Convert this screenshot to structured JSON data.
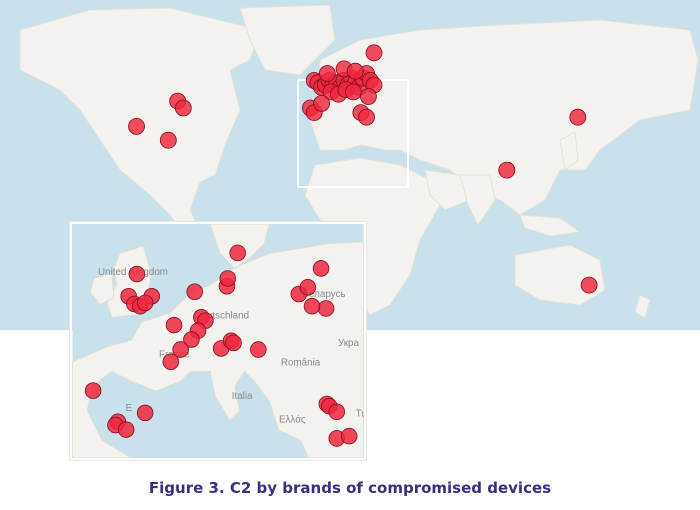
{
  "caption": "Figure 3. C2 by brands of compromised devices",
  "colors": {
    "water": "#c9e1ea",
    "land": "#f3f2ee",
    "land_edge": "#e3e1da",
    "marker_fill": "#f0273d",
    "marker_stroke": "#7a1020",
    "highlight_box": "#ffffff",
    "caption": "#3a2f7f"
  },
  "world_markers": [
    {
      "lon": -75,
      "lat": 43
    },
    {
      "lon": -72,
      "lat": 40
    },
    {
      "lon": -97,
      "lat": 32
    },
    {
      "lon": -80,
      "lat": 26
    },
    {
      "lon": 30,
      "lat": 64
    },
    {
      "lon": 139,
      "lat": 36
    },
    {
      "lon": 101,
      "lat": 13
    },
    {
      "lon": 145,
      "lat": -37
    },
    {
      "lon": -2,
      "lat": 52
    },
    {
      "lon": 0,
      "lat": 51
    },
    {
      "lon": 2,
      "lat": 49
    },
    {
      "lon": 4,
      "lat": 50
    },
    {
      "lon": 6,
      "lat": 52
    },
    {
      "lon": 8,
      "lat": 50
    },
    {
      "lon": 10,
      "lat": 51
    },
    {
      "lon": 12,
      "lat": 49
    },
    {
      "lon": 14,
      "lat": 52
    },
    {
      "lon": 16,
      "lat": 50
    },
    {
      "lon": 18,
      "lat": 53
    },
    {
      "lon": 20,
      "lat": 51
    },
    {
      "lon": 22,
      "lat": 49
    },
    {
      "lon": 24,
      "lat": 53
    },
    {
      "lon": 26,
      "lat": 55
    },
    {
      "lon": 28,
      "lat": 52
    },
    {
      "lon": 30,
      "lat": 50
    },
    {
      "lon": 7,
      "lat": 47
    },
    {
      "lon": 11,
      "lat": 46
    },
    {
      "lon": 15,
      "lat": 48
    },
    {
      "lon": 19,
      "lat": 47
    },
    {
      "lon": -4,
      "lat": 40
    },
    {
      "lon": -2,
      "lat": 38
    },
    {
      "lon": 2,
      "lat": 42
    },
    {
      "lon": 23,
      "lat": 38
    },
    {
      "lon": 26,
      "lat": 36
    },
    {
      "lon": 14,
      "lat": 57
    },
    {
      "lon": 20,
      "lat": 56
    },
    {
      "lon": 5,
      "lat": 55
    },
    {
      "lon": 27,
      "lat": 45
    }
  ],
  "inset_labels": [
    {
      "text": "United Kingdom",
      "key": "uk"
    },
    {
      "text": "Deutschland",
      "key": "de"
    },
    {
      "text": "France",
      "key": "fr"
    },
    {
      "text": "Беларусь",
      "key": "by"
    },
    {
      "text": "Укра",
      "key": "ua"
    },
    {
      "text": "România",
      "key": "ro"
    },
    {
      "text": "Italia",
      "key": "it"
    },
    {
      "text": "Ελλάς",
      "key": "gr"
    },
    {
      "text": "Tu",
      "key": "tr"
    },
    {
      "text": "E",
      "key": "es"
    }
  ],
  "inset_markers": [
    {
      "lon": -2.2,
      "lat": 53.5
    },
    {
      "lon": -0.4,
      "lat": 51.5
    },
    {
      "lon": -3.2,
      "lat": 51.5
    },
    {
      "lon": -2.5,
      "lat": 50.8
    },
    {
      "lon": -1.8,
      "lat": 50.6
    },
    {
      "lon": -1.2,
      "lat": 50.9
    },
    {
      "lon": 2.3,
      "lat": 48.9
    },
    {
      "lon": 4.8,
      "lat": 51.9
    },
    {
      "lon": 8.7,
      "lat": 52.4
    },
    {
      "lon": 8.8,
      "lat": 53.1
    },
    {
      "lon": 10.0,
      "lat": 55.4
    },
    {
      "lon": 5.6,
      "lat": 49.6
    },
    {
      "lon": 6.1,
      "lat": 49.3
    },
    {
      "lon": 5.2,
      "lat": 48.4
    },
    {
      "lon": 4.4,
      "lat": 47.6
    },
    {
      "lon": 3.1,
      "lat": 46.7
    },
    {
      "lon": 8.0,
      "lat": 46.8
    },
    {
      "lon": 9.2,
      "lat": 47.5
    },
    {
      "lon": 9.5,
      "lat": 47.3
    },
    {
      "lon": 12.5,
      "lat": 46.7
    },
    {
      "lon": 1.9,
      "lat": 45.6
    },
    {
      "lon": 17.4,
      "lat": 51.7
    },
    {
      "lon": 18.5,
      "lat": 52.3
    },
    {
      "lon": 20.1,
      "lat": 54.0
    },
    {
      "lon": 20.7,
      "lat": 50.4
    },
    {
      "lon": 19.0,
      "lat": 50.6
    },
    {
      "lon": -7.5,
      "lat": 43.0
    },
    {
      "lon": -4.5,
      "lat": 40.2
    },
    {
      "lon": -4.8,
      "lat": 39.9
    },
    {
      "lon": -1.2,
      "lat": 41.0
    },
    {
      "lon": -3.5,
      "lat": 39.5
    },
    {
      "lon": 20.8,
      "lat": 41.8
    },
    {
      "lon": 21.1,
      "lat": 41.6
    },
    {
      "lon": 22.0,
      "lat": 41.1
    },
    {
      "lon": 22.0,
      "lat": 38.7
    },
    {
      "lon": 23.5,
      "lat": 38.9
    }
  ]
}
